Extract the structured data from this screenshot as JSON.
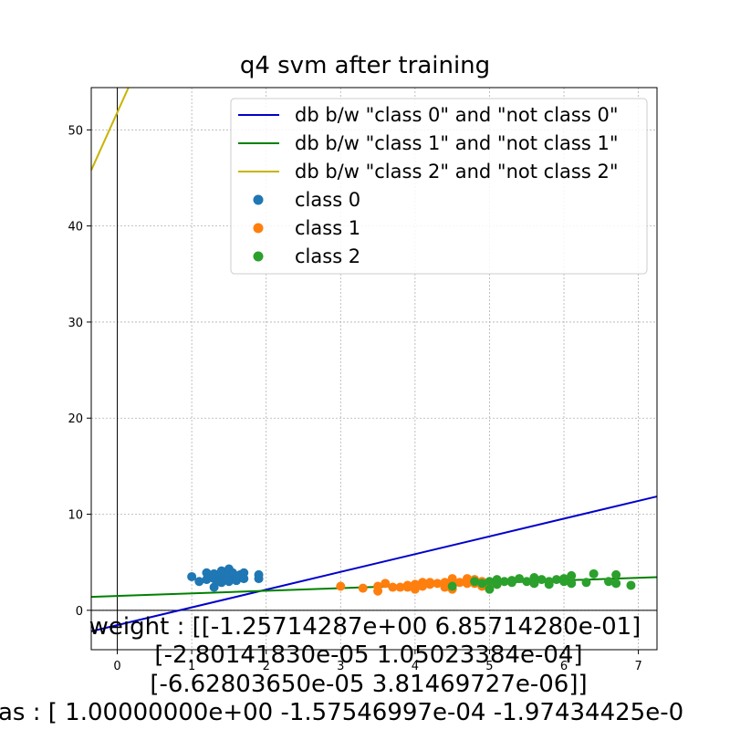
{
  "chart_data": {
    "type": "scatter",
    "title": "q4 svm after training",
    "xlim": [
      -0.35,
      7.25
    ],
    "ylim": [
      -4.1,
      54.4
    ],
    "x_ticks": [
      0,
      1,
      2,
      3,
      4,
      5,
      6,
      7
    ],
    "y_ticks": [
      0,
      10,
      20,
      30,
      40,
      50
    ],
    "grid": true,
    "legend_position": "top-right",
    "lines": [
      {
        "name": "db b/w \"class 0\" and \"not class 0\"",
        "color": "#0000cc",
        "x": [
          -0.35,
          7.25
        ],
        "y": [
          -2.19,
          11.85
        ]
      },
      {
        "name": "db b/w \"class 1\" and \"not class 1\"",
        "color": "#008000",
        "x": [
          -0.35,
          7.25
        ],
        "y": [
          1.4,
          3.45
        ]
      },
      {
        "name": "db b/w \"class 2\" and \"not class 2\"",
        "color": "#c8b400",
        "x": [
          -0.35,
          0.15
        ],
        "y": [
          45.8,
          54.4
        ]
      }
    ],
    "series": [
      {
        "name": "class 0",
        "color": "#1f77b4",
        "points": [
          [
            1.0,
            3.5
          ],
          [
            1.1,
            3.0
          ],
          [
            1.2,
            3.9
          ],
          [
            1.2,
            3.2
          ],
          [
            1.25,
            3.6
          ],
          [
            1.3,
            3.3
          ],
          [
            1.3,
            3.8
          ],
          [
            1.3,
            2.4
          ],
          [
            1.35,
            3.1
          ],
          [
            1.4,
            4.1
          ],
          [
            1.4,
            3.4
          ],
          [
            1.4,
            2.9
          ],
          [
            1.45,
            3.6
          ],
          [
            1.45,
            3.2
          ],
          [
            1.5,
            4.3
          ],
          [
            1.5,
            3.5
          ],
          [
            1.5,
            3.0
          ],
          [
            1.55,
            3.9
          ],
          [
            1.6,
            3.4
          ],
          [
            1.6,
            3.1
          ],
          [
            1.65,
            3.7
          ],
          [
            1.7,
            3.3
          ],
          [
            1.7,
            3.9
          ],
          [
            1.9,
            3.7
          ],
          [
            1.9,
            3.3
          ]
        ]
      },
      {
        "name": "class 1",
        "color": "#ff7f0e",
        "points": [
          [
            3.0,
            2.5
          ],
          [
            3.3,
            2.3
          ],
          [
            3.5,
            2.0
          ],
          [
            3.5,
            2.5
          ],
          [
            3.6,
            2.8
          ],
          [
            3.7,
            2.4
          ],
          [
            3.8,
            2.4
          ],
          [
            3.9,
            2.6
          ],
          [
            3.9,
            2.4
          ],
          [
            4.0,
            2.7
          ],
          [
            4.0,
            2.2
          ],
          [
            4.1,
            2.9
          ],
          [
            4.1,
            2.5
          ],
          [
            4.2,
            2.7
          ],
          [
            4.2,
            2.9
          ],
          [
            4.3,
            2.8
          ],
          [
            4.4,
            2.9
          ],
          [
            4.4,
            2.4
          ],
          [
            4.5,
            3.3
          ],
          [
            4.5,
            2.7
          ],
          [
            4.5,
            2.2
          ],
          [
            4.6,
            2.9
          ],
          [
            4.7,
            3.0
          ],
          [
            4.7,
            2.8
          ],
          [
            4.7,
            3.3
          ],
          [
            4.8,
            2.8
          ],
          [
            4.8,
            3.2
          ],
          [
            4.9,
            3.0
          ],
          [
            4.9,
            2.5
          ],
          [
            5.0,
            2.9
          ],
          [
            5.0,
            2.6
          ],
          [
            5.1,
            2.7
          ]
        ]
      },
      {
        "name": "class 2",
        "color": "#2ca02c",
        "points": [
          [
            4.5,
            2.5
          ],
          [
            4.8,
            3.0
          ],
          [
            4.9,
            2.8
          ],
          [
            5.0,
            3.0
          ],
          [
            5.0,
            2.2
          ],
          [
            5.1,
            2.7
          ],
          [
            5.1,
            3.2
          ],
          [
            5.2,
            3.0
          ],
          [
            5.3,
            2.9
          ],
          [
            5.3,
            3.1
          ],
          [
            5.4,
            3.3
          ],
          [
            5.5,
            3.0
          ],
          [
            5.6,
            2.8
          ],
          [
            5.6,
            3.4
          ],
          [
            5.7,
            3.2
          ],
          [
            5.8,
            2.7
          ],
          [
            5.8,
            3.0
          ],
          [
            5.9,
            3.2
          ],
          [
            6.0,
            3.0
          ],
          [
            6.0,
            3.3
          ],
          [
            6.1,
            2.8
          ],
          [
            6.1,
            3.6
          ],
          [
            6.3,
            2.9
          ],
          [
            6.4,
            3.8
          ],
          [
            6.6,
            3.0
          ],
          [
            6.7,
            2.8
          ],
          [
            6.7,
            3.7
          ],
          [
            6.9,
            2.6
          ]
        ]
      }
    ],
    "annotation_lines": [
      "weight : [[-1.25714287e+00  6.85714280e-01]",
      "[-2.80141830e-05  1.05023384e-04]",
      "[-6.62803650e-05  3.81469727e-06]]",
      "as : [ 1.00000000e+00 -1.57546997e-04 -1.97434425e-0"
    ]
  }
}
